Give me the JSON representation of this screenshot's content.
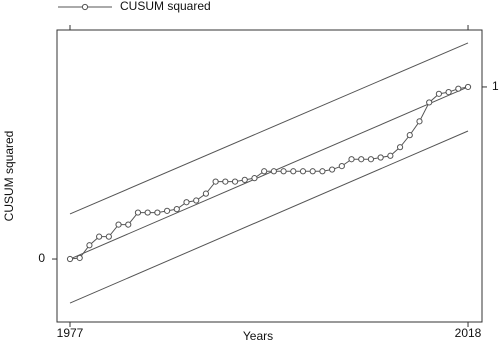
{
  "chart_data": {
    "type": "line",
    "x_label": "Years",
    "y_label": "CUSUM squared",
    "xlim": [
      1975.66,
      2019.44
    ],
    "xticks": [
      1977,
      2018
    ],
    "ylim": [
      -0.366,
      1.331
    ],
    "yticks": [
      0
    ],
    "y2lim": [
      -0.366,
      1.331
    ],
    "y2ticks": [
      1
    ],
    "series": [
      {
        "name": "CUSUM squared",
        "color": "#555555",
        "marker": "circle",
        "x": [
          1977,
          1978,
          1979,
          1980,
          1981,
          1982,
          1983,
          1984,
          1985,
          1986,
          1987,
          1988,
          1989,
          1990,
          1991,
          1992,
          1993,
          1994,
          1995,
          1996,
          1997,
          1998,
          1999,
          2000,
          2001,
          2002,
          2003,
          2004,
          2005,
          2006,
          2007,
          2008,
          2009,
          2010,
          2011,
          2012,
          2013,
          2014,
          2015,
          2016,
          2017,
          2018
        ],
        "values": [
          0,
          0.006,
          0.08,
          0.13,
          0.13,
          0.2,
          0.2,
          0.27,
          0.27,
          0.27,
          0.28,
          0.29,
          0.33,
          0.34,
          0.38,
          0.45,
          0.45,
          0.45,
          0.46,
          0.47,
          0.51,
          0.51,
          0.51,
          0.51,
          0.51,
          0.51,
          0.51,
          0.52,
          0.54,
          0.58,
          0.58,
          0.58,
          0.59,
          0.6,
          0.65,
          0.72,
          0.8,
          0.91,
          0.96,
          0.97,
          0.99,
          1
        ]
      }
    ],
    "reference_lines": [
      {
        "color": "#555555",
        "x": [
          1977,
          2018
        ],
        "values": [
          0.262,
          1.256
        ]
      },
      {
        "color": "#555555",
        "x": [
          1977,
          2018
        ],
        "values": [
          0,
          1
        ]
      },
      {
        "color": "#555555",
        "x": [
          1977,
          2018
        ],
        "values": [
          -0.256,
          0.744
        ]
      }
    ],
    "legend": "top-left"
  }
}
